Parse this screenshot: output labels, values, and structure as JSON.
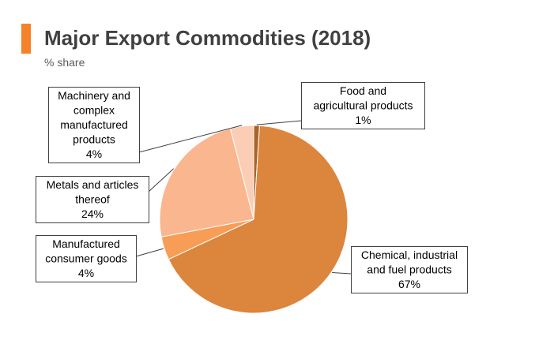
{
  "header": {
    "title": "Major Export Commodities (2018)",
    "subtitle": "% share",
    "accent_color": "#F5822A"
  },
  "chart_data": {
    "type": "pie",
    "title": "Major Export Commodities (2018)",
    "subtitle": "% share",
    "unit": "%",
    "slices": [
      {
        "name": "Food and agricultural products",
        "lines": [
          "Food and",
          "agricultural products"
        ],
        "value": 1,
        "value_label": "1%",
        "color": "#A9642A"
      },
      {
        "name": "Chemical, industrial and fuel products",
        "lines": [
          "Chemical, industrial",
          "and fuel products"
        ],
        "value": 67,
        "value_label": "67%",
        "color": "#DC853D"
      },
      {
        "name": "Manufactured consumer goods",
        "lines": [
          "Manufactured",
          "consumer goods"
        ],
        "value": 4,
        "value_label": "4%",
        "color": "#F79D56"
      },
      {
        "name": "Metals and articles thereof",
        "lines": [
          "Metals and articles",
          "thereof"
        ],
        "value": 24,
        "value_label": "24%",
        "color": "#F9B68F"
      },
      {
        "name": "Machinery and complex manufactured products",
        "lines": [
          "Machinery and",
          "complex",
          "manufactured",
          "products"
        ],
        "value": 4,
        "value_label": "4%",
        "color": "#FBCDB4"
      }
    ]
  }
}
